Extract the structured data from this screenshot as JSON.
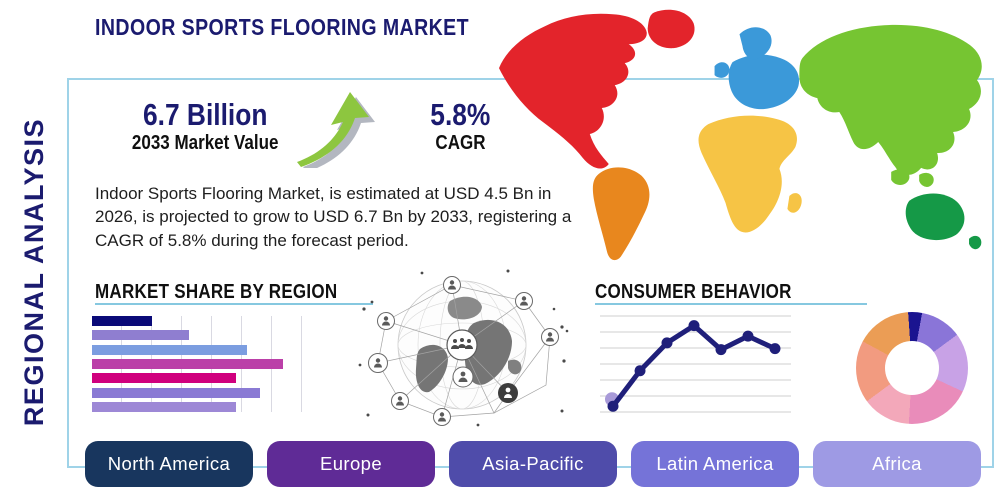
{
  "title": "INDOOR SPORTS FLOORING MARKET",
  "sidebar": {
    "label": "REGIONAL ANALYSIS"
  },
  "stats": {
    "market_value": "6.7 Billion",
    "market_value_caption": "2033 Market Value",
    "cagr_value": "5.8%",
    "cagr_caption": "CAGR"
  },
  "description": "Indoor Sports Flooring Market, is estimated at USD 4.5 Bn in\n2026, is projected to grow to USD 6.7 Bn by 2033, registering a\nCAGR of 5.8% during the forecast period.",
  "sections": {
    "market_share_heading": "MARKET SHARE BY REGION",
    "consumer_behavior_heading": "CONSUMER BEHAVIOR"
  },
  "region_buttons": [
    {
      "label": "North America",
      "color": "#18365e"
    },
    {
      "label": "Europe",
      "color": "#5f2b96"
    },
    {
      "label": "Asia-Pacific",
      "color": "#4f4caa"
    },
    {
      "label": "Latin America",
      "color": "#7573d8"
    },
    {
      "label": "Africa",
      "color": "#9e9ae4"
    }
  ],
  "world_map": {
    "region_colors": {
      "north_america": "#e3242b",
      "greenland": "#e3242b",
      "south_america": "#e8871e",
      "europe": "#3b99d9",
      "scandinavia": "#3b99d9",
      "uk": "#3b99d9",
      "africa": "#f6c445",
      "madagascar": "#f6c445",
      "asia": "#76c532",
      "japan": "#76c532",
      "se_island_1": "#76c532",
      "se_island_2": "#76c532",
      "australia": "#159947",
      "new_zealand": "#159947"
    }
  },
  "accents": {
    "frame_border": "#9fd3e8",
    "heading_underline": "#86c8e0",
    "title_navy": "#1b1b6f",
    "arrow_green": "#8dc63f"
  },
  "chart_data": [
    {
      "type": "bar",
      "title": "MARKET SHARE BY REGION",
      "orientation": "horizontal",
      "values": [
        28,
        45,
        72,
        89,
        67,
        78,
        67
      ],
      "unit": "relative-length-percent-of-axis",
      "colors": [
        "#0a0a78",
        "#8f7ed0",
        "#7b9de0",
        "#bb3fa8",
        "#d0007e",
        "#8a7ad4",
        "#9d88d6"
      ],
      "grid": "vertical",
      "axis_labels_shown": false
    },
    {
      "type": "line",
      "title": "CONSUMER BEHAVIOR",
      "x": [
        1,
        2,
        3,
        4,
        5,
        6,
        7
      ],
      "values": [
        6,
        43,
        72,
        90,
        65,
        79,
        66
      ],
      "ylim": [
        0,
        100
      ],
      "color": "#1f1f7a",
      "first_point_halo_color": "#a89ad8",
      "grid": "horizontal",
      "axis_labels_shown": false
    },
    {
      "type": "donut",
      "values": [
        4,
        12,
        17,
        19,
        14,
        18,
        16
      ],
      "colors": [
        "#1a1490",
        "#8a75d8",
        "#c8a2e6",
        "#e98cba",
        "#f3a8ba",
        "#f29b80",
        "#eb9d55"
      ],
      "start_angle_deg": -4,
      "labels_shown": false
    }
  ]
}
